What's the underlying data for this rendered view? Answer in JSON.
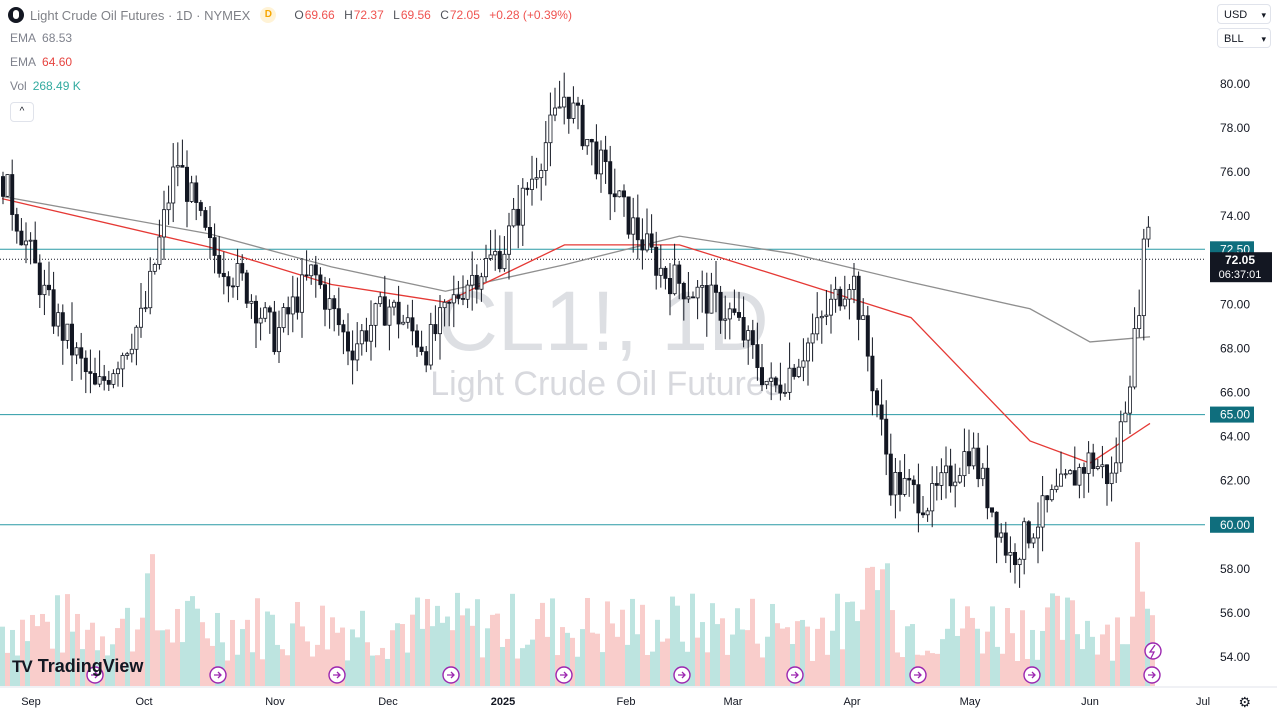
{
  "header": {
    "title": "Light Crude Oil Futures · 1D · NYMEX",
    "badge": "D",
    "ohlc": [
      {
        "key": "O",
        "value": "69.66"
      },
      {
        "key": "H",
        "value": "72.37"
      },
      {
        "key": "L",
        "value": "69.56"
      },
      {
        "key": "C",
        "value": "72.05"
      }
    ],
    "change": "+0.28 (+0.39%)"
  },
  "indicators": [
    {
      "label": "EMA",
      "value": "68.53",
      "color": "#787b86"
    },
    {
      "label": "EMA",
      "value": "64.60",
      "color": "#e53935"
    },
    {
      "label": "Vol",
      "value": "268.49 K",
      "color": "#26a69a"
    }
  ],
  "controls": {
    "currency": "USD",
    "scale": "BLL",
    "collapse": "^"
  },
  "watermark": {
    "symbol": "CL1!, 1D",
    "name": "Light Crude Oil Futures"
  },
  "branding": {
    "logo": "TradingView"
  },
  "colors": {
    "up": "#26a69a",
    "down": "#ef5350",
    "candle": "#131722",
    "level": "#2a9aa5",
    "ema_long": "#8f8f8f",
    "ema_short": "#e53935",
    "price_tag": "#131722"
  },
  "chart_data": {
    "type": "candlestick",
    "y_range": [
      53,
      81
    ],
    "y_ticks": [
      "80.00",
      "78.00",
      "76.00",
      "74.00",
      "72.00",
      "70.00",
      "68.00",
      "66.00",
      "64.00",
      "62.00",
      "60.00",
      "58.00",
      "56.00",
      "54.00"
    ],
    "x_labels": [
      "Sep",
      "Oct",
      "Nov",
      "Dec",
      "2025",
      "Feb",
      "Mar",
      "Apr",
      "May",
      "Jun",
      "Jul"
    ],
    "horizontal_levels": [
      {
        "value": 72.5,
        "label": "72.50"
      },
      {
        "value": 65.0,
        "label": "65.00"
      },
      {
        "value": 60.0,
        "label": "60.00"
      }
    ],
    "last_price": {
      "value": 72.05,
      "label": "72.05",
      "countdown": "06:37:01"
    },
    "ema_long": {
      "value": 68.53,
      "points": [
        [
          "Sep",
          74.9
        ],
        [
          "Oct",
          73.2
        ],
        [
          "Nov",
          71.7
        ],
        [
          "Dec",
          70.6
        ],
        [
          "2025",
          71.8
        ],
        [
          "Feb",
          73.1
        ],
        [
          "Mar",
          72.3
        ],
        [
          "Apr",
          71.0
        ],
        [
          "May",
          69.8
        ],
        [
          "Jun",
          68.3
        ],
        [
          "Jun",
          68.53
        ]
      ]
    },
    "ema_short": {
      "value": 64.6,
      "points": [
        [
          "Sep",
          74.8
        ],
        [
          "Oct",
          72.6
        ],
        [
          "Nov",
          70.9
        ],
        [
          "Dec",
          70.1
        ],
        [
          "2025",
          72.7
        ],
        [
          "Feb",
          72.7
        ],
        [
          "Mar",
          71.1
        ],
        [
          "Apr",
          69.4
        ],
        [
          "May",
          63.8
        ],
        [
          "Jun",
          62.8
        ],
        [
          "Jun",
          64.6
        ]
      ]
    },
    "price_path": [
      [
        "Sep",
        75.8
      ],
      [
        "Sep",
        70.0
      ],
      [
        "Sep",
        66.0
      ],
      [
        "Oct",
        69.5
      ],
      [
        "Oct",
        76.6
      ],
      [
        "Oct",
        72.5
      ],
      [
        "Oct",
        71.0
      ],
      [
        "Nov",
        68.5
      ],
      [
        "Nov",
        71.5
      ],
      [
        "Nov",
        68.0
      ],
      [
        "Dec",
        70.0
      ],
      [
        "Dec",
        68.0
      ],
      [
        "Dec",
        71.0
      ],
      [
        "2025",
        72.5
      ],
      [
        "2025",
        79.5
      ],
      [
        "Feb",
        74.0
      ],
      [
        "Feb",
        71.5
      ],
      [
        "Feb",
        70.5
      ],
      [
        "Mar",
        69.5
      ],
      [
        "Mar",
        66.0
      ],
      [
        "Mar",
        68.5
      ],
      [
        "Apr",
        71.5
      ],
      [
        "Apr",
        62.0
      ],
      [
        "Apr",
        61.0
      ],
      [
        "May",
        63.5
      ],
      [
        "May",
        58.5
      ],
      [
        "May",
        61.0
      ],
      [
        "Jun",
        63.0
      ],
      [
        "Jun",
        62.0
      ],
      [
        "Jun",
        68.5
      ],
      [
        "Jun",
        75.0
      ],
      [
        "Jun",
        72.05
      ]
    ],
    "volume": {
      "relative": true
    }
  }
}
